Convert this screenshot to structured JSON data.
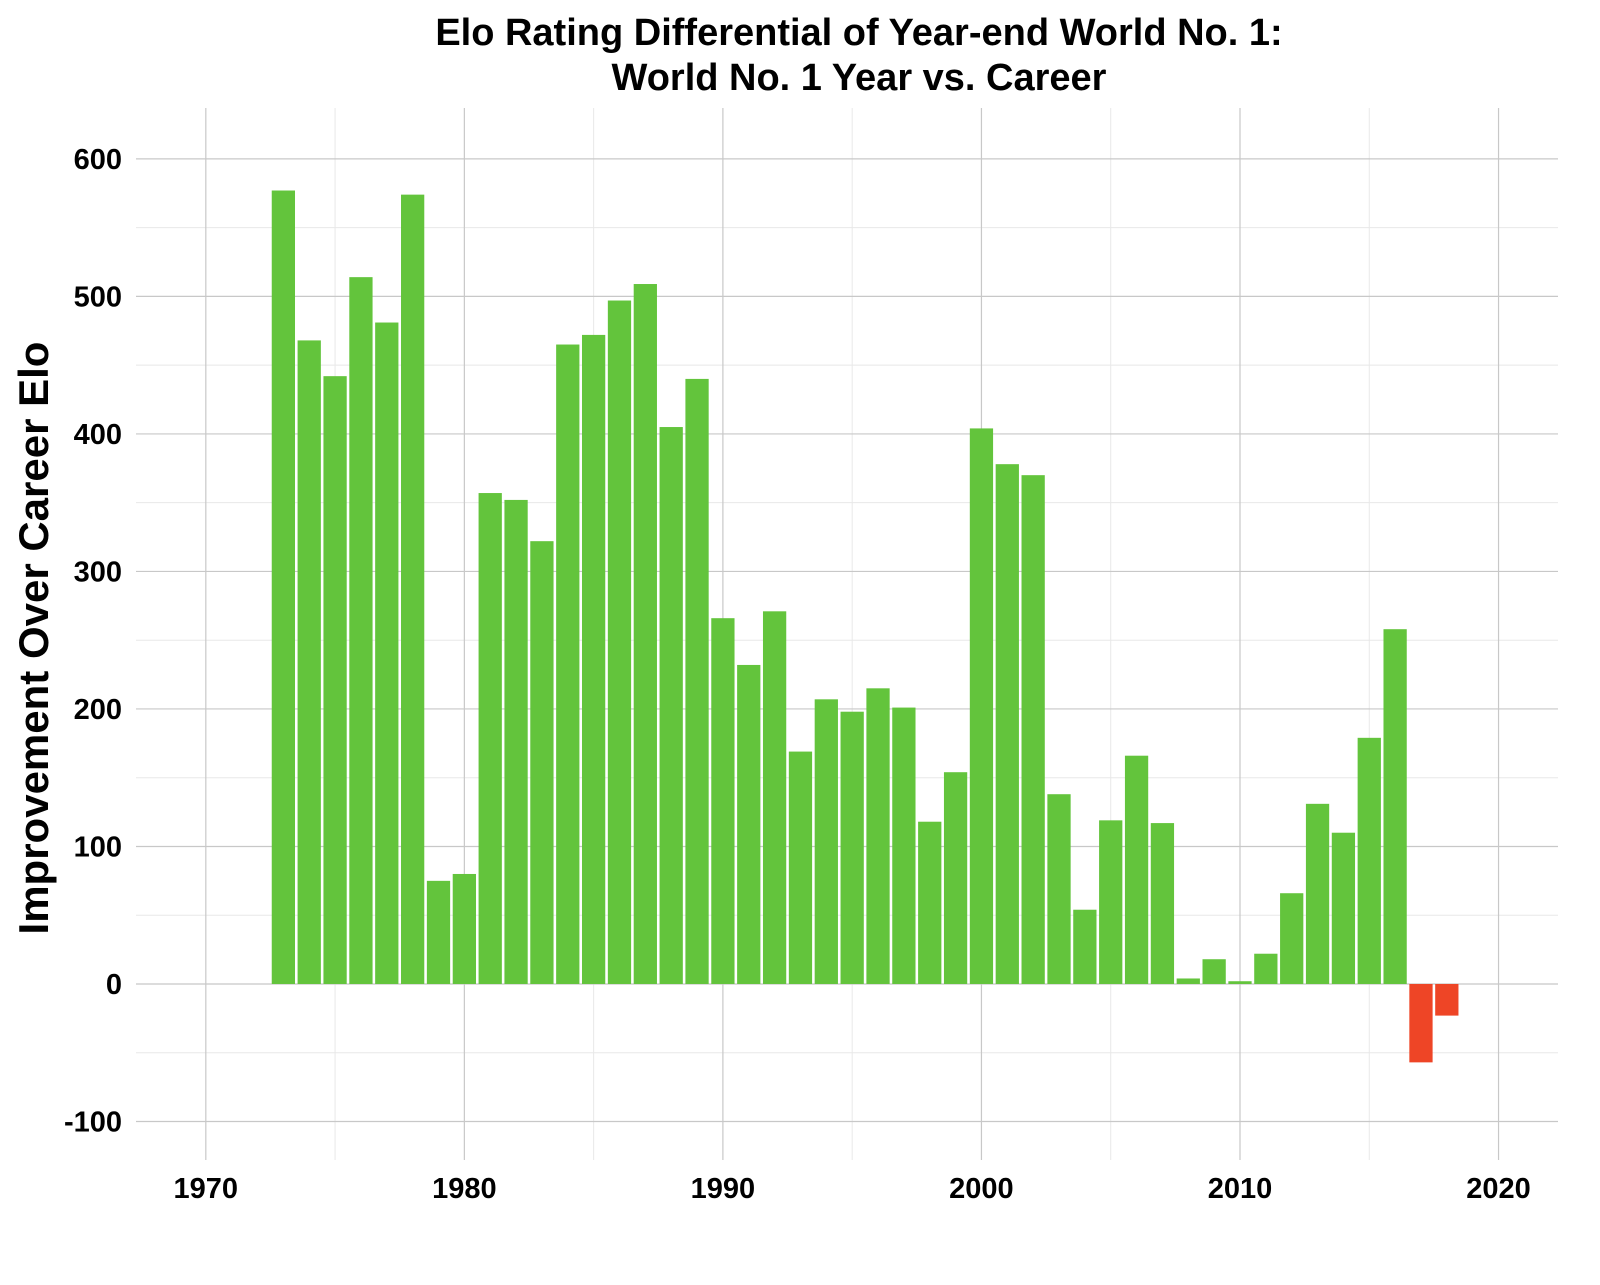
{
  "chart_data": {
    "type": "bar",
    "title_line1": "Elo Rating Differential of Year-end World No. 1:",
    "title_line2": "World No. 1 Year vs. Career",
    "xlabel": "",
    "ylabel": "Improvement Over Career Elo",
    "xlim": [
      1967.3,
      1972.6
    ],
    "xlim_note": "",
    "ylim": [
      -128,
      637
    ],
    "grid": true,
    "legend": "none",
    "x_ticks": [
      1970,
      1980,
      1990,
      2000,
      2010,
      2020
    ],
    "x_tick_labels": [
      "1970",
      "1980",
      "1990",
      "2000",
      "2010",
      "2020"
    ],
    "y_ticks": [
      -100,
      0,
      100,
      200,
      300,
      400,
      500,
      600
    ],
    "y_tick_labels": [
      "-100",
      "0",
      "100",
      "200",
      "300",
      "400",
      "500",
      "600"
    ],
    "colors": {
      "positive": "#63c43c",
      "negative": "#ee4526",
      "grid_major": "#c8c8c8",
      "grid_minor": "#e8e8e8"
    },
    "x": [
      1973,
      1974,
      1975,
      1976,
      1977,
      1978,
      1979,
      1980,
      1981,
      1982,
      1983,
      1984,
      1985,
      1986,
      1987,
      1988,
      1989,
      1990,
      1991,
      1992,
      1993,
      1994,
      1995,
      1996,
      1997,
      1998,
      1999,
      2000,
      2001,
      2002,
      2003,
      2004,
      2005,
      2006,
      2007,
      2008,
      2009,
      2010,
      2011,
      2012,
      2013,
      2014,
      2015,
      2016,
      2017,
      2018
    ],
    "values": [
      577,
      468,
      442,
      514,
      481,
      574,
      75,
      80,
      357,
      352,
      322,
      465,
      472,
      497,
      509,
      405,
      440,
      266,
      232,
      271,
      169,
      207,
      198,
      215,
      201,
      118,
      154,
      404,
      378,
      370,
      138,
      54,
      119,
      166,
      117,
      4,
      18,
      2,
      22,
      66,
      131,
      110,
      179,
      258,
      -57,
      -23
    ]
  }
}
